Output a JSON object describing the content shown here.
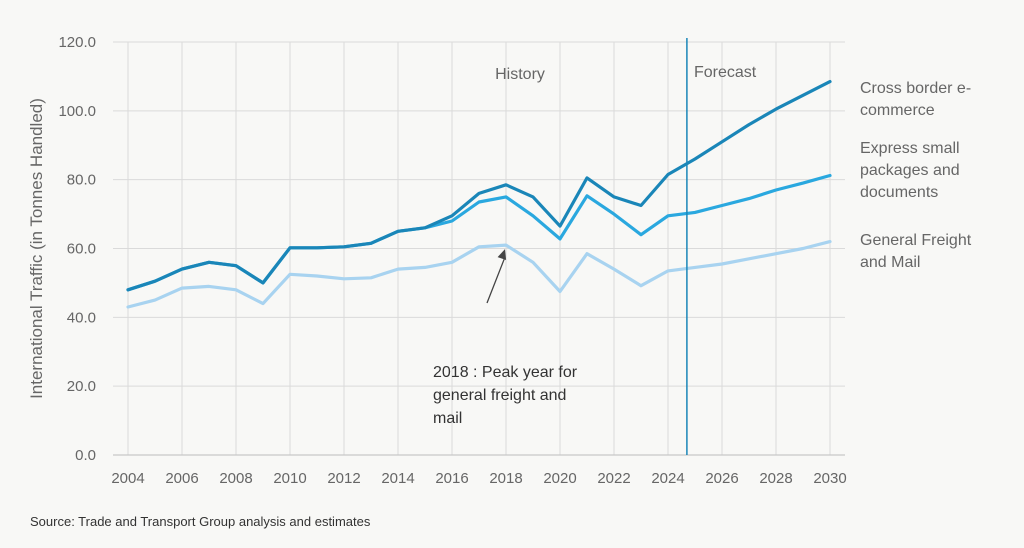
{
  "chart_data": {
    "type": "line",
    "ylabel": "International Traffic (in Tonnes Handled)",
    "ylim": [
      0,
      120
    ],
    "yticks": [
      "0.0",
      "20.0",
      "40.0",
      "60.0",
      "80.0",
      "100.0",
      "120.0"
    ],
    "xlim": [
      2004,
      2030
    ],
    "xticks": [
      "2004",
      "2006",
      "2008",
      "2010",
      "2012",
      "2014",
      "2016",
      "2018",
      "2020",
      "2022",
      "2024",
      "2026",
      "2028",
      "2030"
    ],
    "grid": true,
    "x": [
      2004,
      2005,
      2006,
      2007,
      2008,
      2009,
      2010,
      2011,
      2012,
      2013,
      2014,
      2015,
      2016,
      2017,
      2018,
      2019,
      2020,
      2021,
      2022,
      2023,
      2024,
      2025,
      2026,
      2027,
      2028,
      2029,
      2030
    ],
    "series": [
      {
        "name": "Cross border e-commerce",
        "label_lines": [
          "Cross border e-",
          "commerce"
        ],
        "color": "#1a86b8",
        "values": [
          48,
          50.5,
          54,
          56,
          55,
          50,
          60.2,
          60.2,
          60.5,
          61.5,
          65,
          66,
          69.5,
          76,
          78.5,
          75,
          66.5,
          80.5,
          75,
          72.5,
          81.5,
          86,
          91,
          96,
          100.5,
          104.5,
          108.5
        ]
      },
      {
        "name": "Express small packages and documents",
        "label_lines": [
          "Express small",
          "packages and",
          "documents"
        ],
        "color": "#2aa8df",
        "values": [
          48,
          50.5,
          54,
          56,
          55,
          50,
          60.2,
          60.2,
          60.5,
          61.5,
          65,
          66,
          68,
          73.5,
          75,
          69.5,
          62.8,
          75.3,
          70,
          64,
          69.5,
          70.5,
          72.5,
          74.5,
          77,
          79,
          81.2
        ]
      },
      {
        "name": "General Freight and Mail",
        "label_lines": [
          "General Freight",
          "and Mail"
        ],
        "color": "#a8d3f0",
        "values": [
          43,
          45,
          48.5,
          49,
          48,
          44,
          52.5,
          52,
          51.2,
          51.5,
          54,
          54.5,
          56,
          60.5,
          61,
          56,
          47.5,
          58.5,
          54,
          49.2,
          53.5,
          54.5,
          55.5,
          57,
          58.5,
          60,
          62
        ]
      }
    ],
    "forecast_divider_x": 2024.7,
    "annotations": {
      "history": "History",
      "forecast": "Forecast",
      "peak_note": [
        "2018 : Peak year for",
        "general freight and",
        "mail"
      ],
      "peak_point": [
        2018,
        61
      ]
    }
  },
  "source": "Source: Trade and Transport Group analysis and estimates"
}
